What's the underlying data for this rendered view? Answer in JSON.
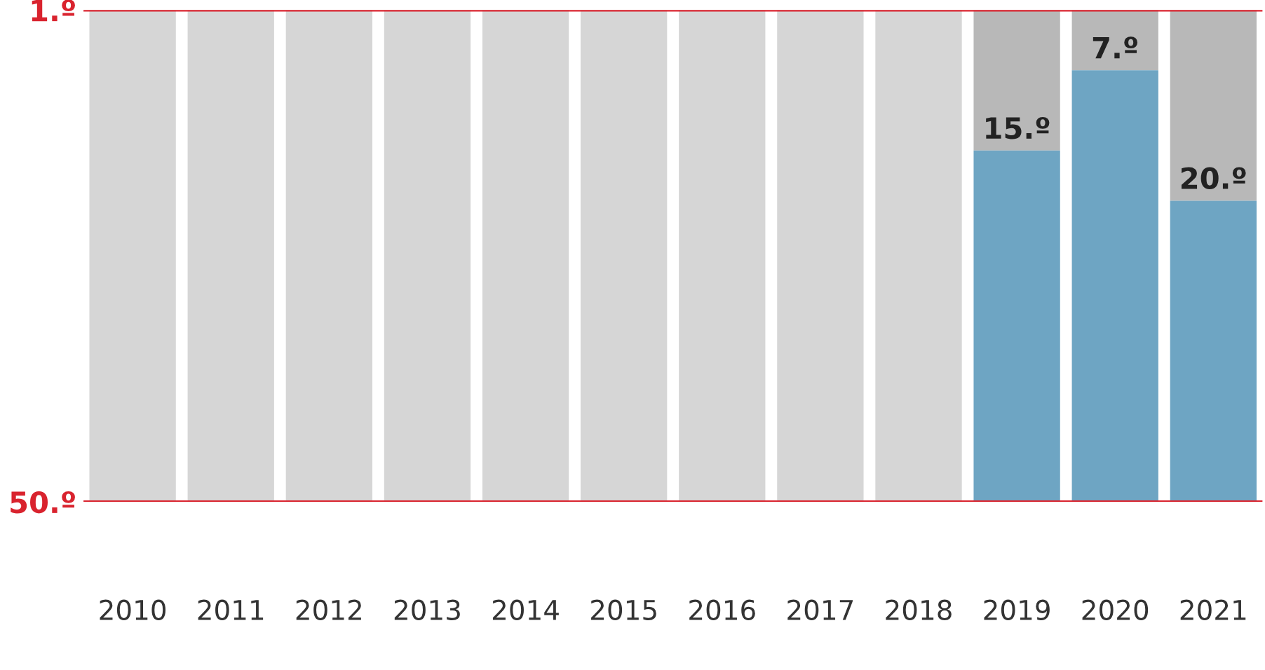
{
  "chart_data": {
    "type": "bar",
    "categories": [
      "2010",
      "2011",
      "2012",
      "2013",
      "2014",
      "2015",
      "2016",
      "2017",
      "2018",
      "2019",
      "2020",
      "2021"
    ],
    "series": [
      {
        "colors": [
          "#d6d6d6",
          "#d6d6d6",
          "#d6d6d6",
          "#d6d6d6",
          "#d6d6d6",
          "#d6d6d6",
          "#d6d6d6",
          "#d6d6d6",
          "#d6d6d6",
          "#b8b8b8",
          "#b8b8b8",
          "#b8b8b8"
        ],
        "base": [
          50,
          50,
          50,
          50,
          50,
          50,
          50,
          50,
          50,
          15,
          7,
          20
        ],
        "values": [
          -49,
          -49,
          -49,
          -49,
          -49,
          -49,
          -49,
          -49,
          -49,
          -14,
          -6,
          -19
        ]
      },
      {
        "color": "#6ea5c3",
        "base": [
          null,
          null,
          null,
          null,
          null,
          null,
          null,
          null,
          null,
          50,
          50,
          50
        ],
        "values": [
          null,
          null,
          null,
          null,
          null,
          null,
          null,
          null,
          null,
          -35,
          -43,
          -30
        ],
        "value_labels": [
          null,
          null,
          null,
          null,
          null,
          null,
          null,
          null,
          null,
          "15.º",
          "7.º",
          "20.º"
        ]
      }
    ],
    "ylim": [
      50,
      1
    ],
    "yticks": [
      {
        "value": 1,
        "label": "1.º"
      },
      {
        "value": 50,
        "label": "50.º"
      }
    ],
    "ref_lines": [
      {
        "axis": "y",
        "value": 1,
        "color": "#d9232e"
      },
      {
        "axis": "y",
        "value": 50,
        "color": "#d9232e"
      }
    ],
    "grid": false,
    "legend": false
  }
}
